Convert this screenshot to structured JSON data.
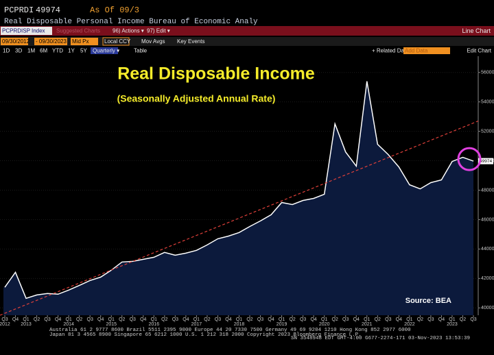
{
  "header": {
    "ticker": "PCPRDI",
    "last": 49974,
    "as_of": "As Of 09/3",
    "description": "Real Disposable Personal Income Bureau of Economic Analy"
  },
  "toolbar": {
    "security": "PCPRDISP Index",
    "suggested": "Suggested Charts",
    "actions": "96) Actions ▾",
    "edit": "97) Edit ▾",
    "chart_type": "Line Chart",
    "start_date": "09/30/2012",
    "end_date": "- 09/30/2023",
    "price": "Mid Px",
    "currency": "Local CCY",
    "mov_avgs": "Mov Avgs",
    "key_events": "Key Events",
    "periods": [
      "1D",
      "3D",
      "1M",
      "6M",
      "YTD",
      "1Y",
      "5Y",
      "Max"
    ],
    "frequency": "Quarterly ▾",
    "table": "Table",
    "related": "+ Related Dat",
    "add_data": "Add Data",
    "edit_chart": "Edit Chart"
  },
  "chart_data": {
    "type": "area",
    "title": "Real Disposable Income",
    "subtitle": "(Seasonally Adjusted Annual Rate)",
    "source": "Source: BEA",
    "categories": [
      "Q3",
      "Q4",
      "Q1",
      "Q2",
      "Q3",
      "Q4",
      "Q1",
      "Q2",
      "Q3",
      "Q4",
      "Q1",
      "Q2",
      "Q3",
      "Q4",
      "Q1",
      "Q2",
      "Q3",
      "Q4",
      "Q1",
      "Q2",
      "Q3",
      "Q4",
      "Q1",
      "Q2",
      "Q3",
      "Q4",
      "Q1",
      "Q2",
      "Q3",
      "Q4",
      "Q1",
      "Q2",
      "Q3",
      "Q4",
      "Q1",
      "Q2",
      "Q3",
      "Q4",
      "Q1",
      "Q2",
      "Q3",
      "Q4",
      "Q1",
      "Q2",
      "Q3"
    ],
    "year_labels": [
      "2012",
      null,
      "2013",
      null,
      null,
      null,
      "2014",
      null,
      null,
      null,
      "2015",
      null,
      null,
      null,
      "2016",
      null,
      null,
      null,
      "2017",
      null,
      null,
      null,
      "2018",
      null,
      null,
      null,
      "2019",
      null,
      null,
      null,
      "2020",
      null,
      null,
      null,
      "2021",
      null,
      null,
      null,
      "2022",
      null,
      null,
      null,
      "2023",
      null,
      null
    ],
    "values": [
      41400,
      42420,
      40650,
      40880,
      40980,
      40930,
      41210,
      41530,
      41860,
      42090,
      42560,
      43120,
      43160,
      43300,
      43440,
      43770,
      43580,
      43720,
      43910,
      44280,
      44700,
      44880,
      45120,
      45530,
      45910,
      46330,
      47160,
      47020,
      47300,
      47440,
      47720,
      52510,
      50600,
      49630,
      55400,
      51120,
      50420,
      49580,
      48370,
      48090,
      48510,
      48700,
      49950,
      50230,
      49974
    ],
    "line_color": "#ffffff",
    "fill_color": "#0c1a3c",
    "trend": {
      "values": [
        39500,
        52700
      ],
      "color": "#e0403a"
    },
    "highlight_color": "#e040e0",
    "ylim": [
      39500,
      56500
    ],
    "yticks": [
      40000,
      42000,
      44000,
      46000,
      48000,
      50000,
      52000,
      54000,
      56000
    ],
    "grid": true
  },
  "footer": {
    "lines": [
      "Australia 61 2 9777 8600 Brazil 5511 2395 9000 Europe 44 20 7330 7500 Germany 49 69 9204 1210 Hong Kong 852 2977 6000",
      "Japan 81 3 4565 8900       Singapore 65 6212 1000       U.S. 1 212 318 2000          Copyright 2023 Bloomberg Finance L.P.",
      "SN 3548948 EDT  GMT-4:00 G677-2274-171 03-Nov-2023 13:53:39"
    ]
  }
}
